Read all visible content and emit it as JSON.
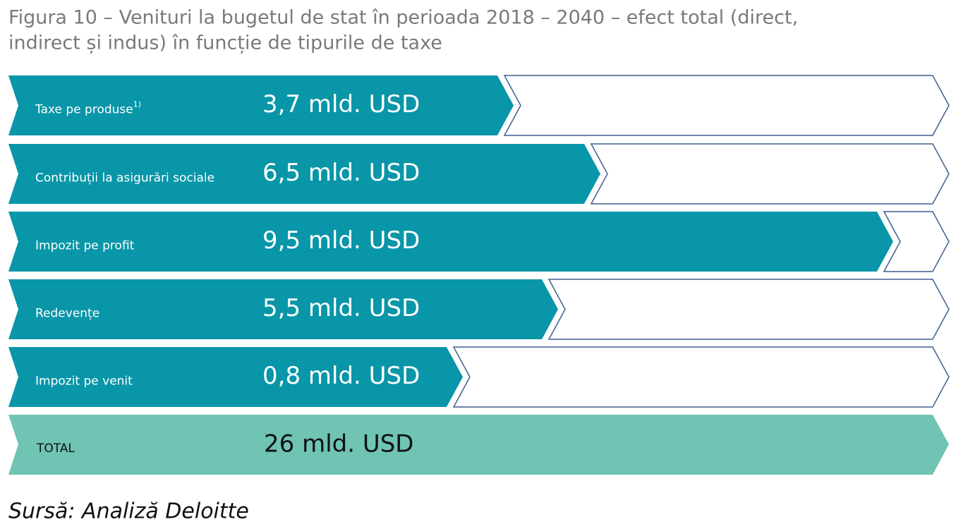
{
  "header": {
    "title_line1": "Figura 10 – Venituri la bugetul de stat în perioada 2018 – 2040 – efect total (direct,",
    "title_line2": "indirect și indus) în funcție de tipurile de taxe"
  },
  "rows": [
    {
      "label": "Taxe pe produse",
      "note": "1)",
      "value": "3,7 mld. USD"
    },
    {
      "label": "Contribuții la asigurări sociale",
      "value": "6,5 mld. USD"
    },
    {
      "label": "Impozit pe profit",
      "value": "9,5 mld. USD"
    },
    {
      "label": "Redevențe",
      "value": "5,5 mld. USD"
    },
    {
      "label": "Impozit pe venit",
      "value": "0,8 mld. USD"
    }
  ],
  "total": {
    "label": "TOTAL",
    "value": "26 mld. USD"
  },
  "source": "Sursă: Analiză Deloitte"
}
